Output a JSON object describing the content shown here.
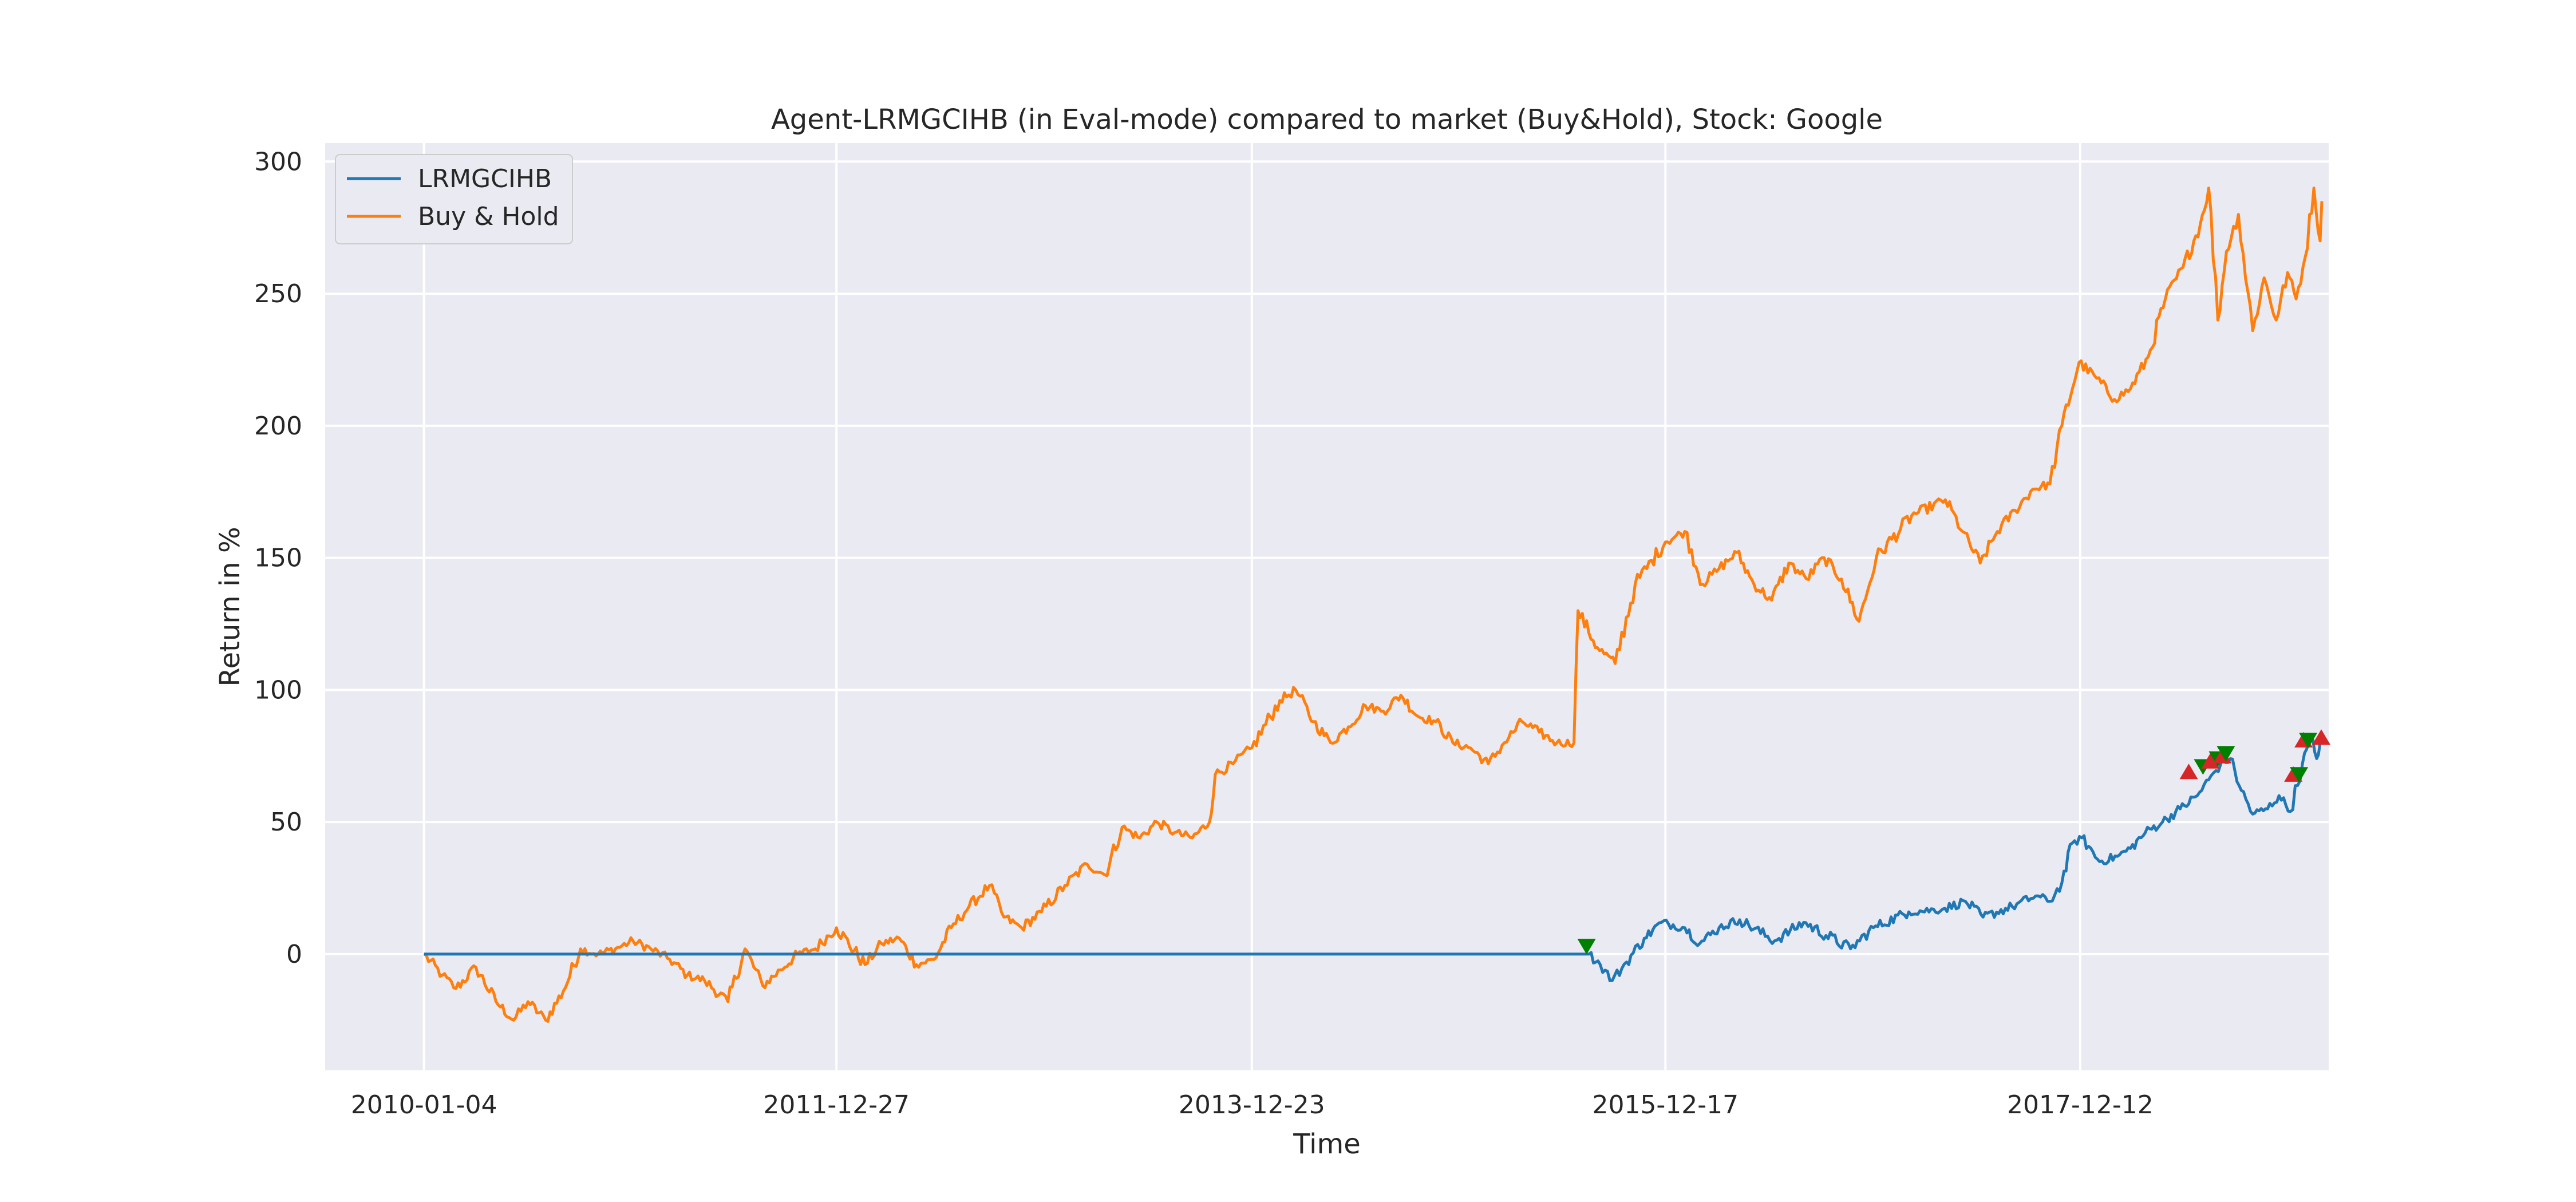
{
  "chart_data": {
    "type": "line",
    "title": "Agent-LRMGCIHB (in Eval-mode) compared to market (Buy&Hold), Stock: Google",
    "xlabel": "Time",
    "ylabel": "Return in %",
    "xlim": [
      "2009-07-15",
      "2019-02-20"
    ],
    "ylim": [
      -44,
      307
    ],
    "x_ticks": [
      "2010-01-04",
      "2011-12-27",
      "2013-12-23",
      "2015-12-17",
      "2017-12-12"
    ],
    "y_ticks": [
      0,
      50,
      100,
      150,
      200,
      250,
      300
    ],
    "grid": true,
    "legend_position": "top-left",
    "colors": {
      "LRMGCIHB": "#1f77b4",
      "Buy & Hold": "#ff7f0e",
      "buy_marker": "#008000",
      "sell_marker": "#d62728",
      "plot_background": "#eaeaf2"
    },
    "series": [
      {
        "name": "LRMGCIHB",
        "color": "#1f77b4",
        "points": [
          [
            "2010-01-04",
            0
          ],
          [
            "2015-08-05",
            0
          ],
          [
            "2015-08-25",
            -4
          ],
          [
            "2015-09-15",
            -10
          ],
          [
            "2015-10-10",
            -3
          ],
          [
            "2015-11-10",
            6
          ],
          [
            "2015-12-10",
            12
          ],
          [
            "2016-01-20",
            10
          ],
          [
            "2016-02-15",
            4
          ],
          [
            "2016-03-20",
            10
          ],
          [
            "2016-04-25",
            13
          ],
          [
            "2016-06-25",
            5
          ],
          [
            "2016-08-15",
            12
          ],
          [
            "2016-11-05",
            2
          ],
          [
            "2016-12-15",
            10
          ],
          [
            "2017-02-15",
            16
          ],
          [
            "2017-04-15",
            17
          ],
          [
            "2017-05-25",
            20
          ],
          [
            "2017-06-25",
            14
          ],
          [
            "2017-08-15",
            18
          ],
          [
            "2017-09-25",
            22
          ],
          [
            "2017-10-20",
            20
          ],
          [
            "2017-11-10",
            27
          ],
          [
            "2017-11-28",
            42
          ],
          [
            "2017-12-15",
            44
          ],
          [
            "2018-01-15",
            35
          ],
          [
            "2018-02-15",
            37
          ],
          [
            "2018-03-10",
            40
          ],
          [
            "2018-04-05",
            46
          ],
          [
            "2018-05-05",
            50
          ],
          [
            "2018-06-05",
            55
          ],
          [
            "2018-07-05",
            60
          ],
          [
            "2018-07-25",
            66
          ],
          [
            "2018-08-15",
            72
          ],
          [
            "2018-09-01",
            74
          ],
          [
            "2018-09-20",
            62
          ],
          [
            "2018-10-10",
            53
          ],
          [
            "2018-11-05",
            55
          ],
          [
            "2018-11-25",
            60
          ],
          [
            "2018-12-15",
            54
          ],
          [
            "2019-01-05",
            72
          ],
          [
            "2019-01-20",
            82
          ],
          [
            "2019-01-30",
            74
          ],
          [
            "2019-02-05",
            80
          ]
        ]
      },
      {
        "name": "Buy & Hold",
        "color": "#ff7f0e",
        "points": [
          [
            "2010-01-04",
            0
          ],
          [
            "2010-02-05",
            -8
          ],
          [
            "2010-03-01",
            -13
          ],
          [
            "2010-04-05",
            -5
          ],
          [
            "2010-05-10",
            -18
          ],
          [
            "2010-06-10",
            -25
          ],
          [
            "2010-07-05",
            -18
          ],
          [
            "2010-08-05",
            -25
          ],
          [
            "2010-09-05",
            -14
          ],
          [
            "2010-10-05",
            2
          ],
          [
            "2010-11-05",
            0
          ],
          [
            "2010-12-05",
            2
          ],
          [
            "2011-01-05",
            5
          ],
          [
            "2011-02-05",
            2
          ],
          [
            "2011-03-10",
            -2
          ],
          [
            "2011-04-10",
            -8
          ],
          [
            "2011-05-10",
            -10
          ],
          [
            "2011-06-20",
            -18
          ],
          [
            "2011-07-20",
            2
          ],
          [
            "2011-08-20",
            -12
          ],
          [
            "2011-09-20",
            -6
          ],
          [
            "2011-10-20",
            0
          ],
          [
            "2011-11-20",
            2
          ],
          [
            "2011-12-27",
            10
          ],
          [
            "2012-02-15",
            -4
          ],
          [
            "2012-03-15",
            4
          ],
          [
            "2012-04-15",
            6
          ],
          [
            "2012-05-15",
            -4
          ],
          [
            "2012-06-15",
            -2
          ],
          [
            "2012-07-15",
            10
          ],
          [
            "2012-08-15",
            18
          ],
          [
            "2012-09-20",
            26
          ],
          [
            "2012-10-15",
            14
          ],
          [
            "2012-11-15",
            10
          ],
          [
            "2012-12-20",
            16
          ],
          [
            "2013-01-30",
            26
          ],
          [
            "2013-03-10",
            34
          ],
          [
            "2013-04-10",
            30
          ],
          [
            "2013-05-10",
            48
          ],
          [
            "2013-06-10",
            44
          ],
          [
            "2013-07-10",
            50
          ],
          [
            "2013-08-10",
            46
          ],
          [
            "2013-09-10",
            44
          ],
          [
            "2013-10-10",
            50
          ],
          [
            "2013-10-20",
            68
          ],
          [
            "2013-11-20",
            72
          ],
          [
            "2013-12-23",
            78
          ],
          [
            "2014-02-10",
            96
          ],
          [
            "2014-03-10",
            100
          ],
          [
            "2014-04-10",
            88
          ],
          [
            "2014-05-10",
            80
          ],
          [
            "2014-06-10",
            86
          ],
          [
            "2014-07-10",
            94
          ],
          [
            "2014-08-10",
            92
          ],
          [
            "2014-09-10",
            98
          ],
          [
            "2014-10-10",
            90
          ],
          [
            "2014-11-10",
            88
          ],
          [
            "2014-12-10",
            80
          ],
          [
            "2015-01-10",
            78
          ],
          [
            "2015-02-10",
            72
          ],
          [
            "2015-03-10",
            80
          ],
          [
            "2015-04-10",
            88
          ],
          [
            "2015-05-10",
            84
          ],
          [
            "2015-06-10",
            80
          ],
          [
            "2015-07-10",
            80
          ],
          [
            "2015-07-17",
            130
          ],
          [
            "2015-08-20",
            116
          ],
          [
            "2015-09-20",
            110
          ],
          [
            "2015-10-25",
            140
          ],
          [
            "2015-12-17",
            156
          ],
          [
            "2016-01-20",
            160
          ],
          [
            "2016-02-20",
            140
          ],
          [
            "2016-03-20",
            146
          ],
          [
            "2016-04-20",
            152
          ],
          [
            "2016-05-20",
            140
          ],
          [
            "2016-06-20",
            134
          ],
          [
            "2016-07-20",
            148
          ],
          [
            "2016-08-20",
            142
          ],
          [
            "2016-09-20",
            150
          ],
          [
            "2016-10-20",
            142
          ],
          [
            "2016-11-20",
            126
          ],
          [
            "2016-12-20",
            150
          ],
          [
            "2017-02-20",
            166
          ],
          [
            "2017-04-20",
            172
          ],
          [
            "2017-05-20",
            160
          ],
          [
            "2017-06-20",
            148
          ],
          [
            "2017-07-20",
            160
          ],
          [
            "2017-08-20",
            168
          ],
          [
            "2017-09-20",
            176
          ],
          [
            "2017-10-20",
            178
          ],
          [
            "2017-11-10",
            200
          ],
          [
            "2017-12-10",
            224
          ],
          [
            "2018-01-10",
            218
          ],
          [
            "2018-02-10",
            210
          ],
          [
            "2018-03-10",
            214
          ],
          [
            "2018-04-10",
            226
          ],
          [
            "2018-05-10",
            248
          ],
          [
            "2018-06-10",
            260
          ],
          [
            "2018-07-10",
            276
          ],
          [
            "2018-07-25",
            290
          ],
          [
            "2018-08-10",
            240
          ],
          [
            "2018-08-25",
            266
          ],
          [
            "2018-09-15",
            280
          ],
          [
            "2018-10-10",
            236
          ],
          [
            "2018-10-30",
            256
          ],
          [
            "2018-11-20",
            240
          ],
          [
            "2018-12-10",
            258
          ],
          [
            "2018-12-25",
            248
          ],
          [
            "2019-01-10",
            264
          ],
          [
            "2019-01-25",
            290
          ],
          [
            "2019-02-05",
            270
          ],
          [
            "2019-02-08",
            285
          ]
        ]
      }
    ],
    "markers": [
      {
        "type": "buy",
        "x": "2015-08-01",
        "y": 3
      },
      {
        "type": "sell",
        "x": "2018-06-20",
        "y": 69
      },
      {
        "type": "buy",
        "x": "2018-07-15",
        "y": 71
      },
      {
        "type": "sell",
        "x": "2018-07-28",
        "y": 73
      },
      {
        "type": "buy",
        "x": "2018-08-10",
        "y": 74
      },
      {
        "type": "sell",
        "x": "2018-08-18",
        "y": 75
      },
      {
        "type": "buy",
        "x": "2018-08-24",
        "y": 76
      },
      {
        "type": "sell",
        "x": "2018-12-20",
        "y": 68
      },
      {
        "type": "buy",
        "x": "2018-12-30",
        "y": 68
      },
      {
        "type": "sell",
        "x": "2019-01-07",
        "y": 81
      },
      {
        "type": "buy",
        "x": "2019-01-15",
        "y": 81
      },
      {
        "type": "sell",
        "x": "2019-02-07",
        "y": 82
      }
    ]
  }
}
